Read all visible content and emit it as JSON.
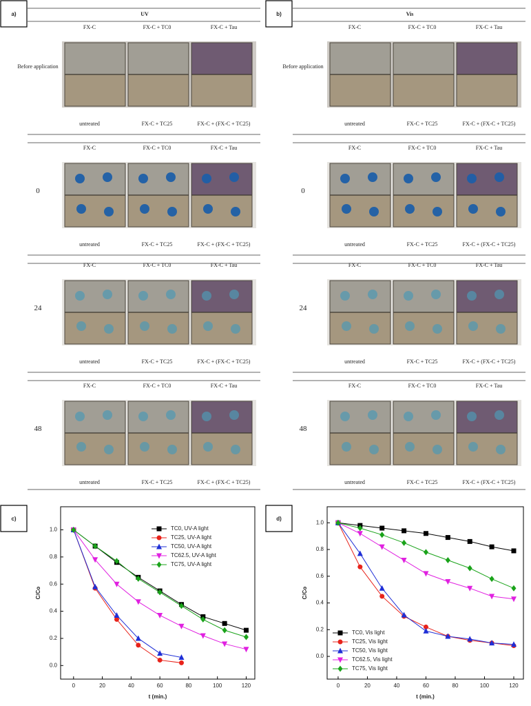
{
  "panels": [
    {
      "label": "a)",
      "light": "UV",
      "top_labels": [
        "FX-C",
        "FX-C + TC0",
        "FX-C + Tau"
      ],
      "bottom_labels": [
        "untreated",
        "FX-C + TC25",
        "FX-C + (FX-C + TC25)"
      ],
      "rows": [
        "Before application",
        "0",
        "24",
        "48"
      ]
    },
    {
      "label": "b)",
      "light": "Vis",
      "top_labels": [
        "FX-C",
        "FX-C + TC0",
        "FX-C + Tau"
      ],
      "bottom_labels": [
        "untreated",
        "FX-C + TC25",
        "FX-C + (FX-C + TC25)"
      ],
      "rows": [
        "Before application",
        "0",
        "24",
        "48"
      ]
    }
  ],
  "chart_data": [
    {
      "type": "line",
      "panel_label": "c)",
      "xlabel": "t (min.)",
      "ylabel": "C/Co",
      "x": [
        0,
        15,
        30,
        45,
        60,
        75,
        90,
        105,
        120
      ],
      "xlim": [
        -9,
        126
      ],
      "ylim": [
        -0.1,
        1.17
      ],
      "xticks": [
        0,
        20,
        40,
        60,
        80,
        100,
        120
      ],
      "yticks": [
        {
          "value": 0,
          "label": "0.0"
        },
        0.2,
        0.4,
        0.6,
        0.8,
        {
          "value": 1,
          "label": "1.0"
        }
      ],
      "legend": "upper right",
      "series": [
        {
          "name": "TC0, UV-A light",
          "color": "#000000",
          "marker": "square",
          "values": [
            1.0,
            0.88,
            0.76,
            0.65,
            0.55,
            0.45,
            0.36,
            0.31,
            0.26
          ]
        },
        {
          "name": "TC25, UV-A light",
          "color": "#e8231b",
          "marker": "circle",
          "values": [
            1.0,
            0.57,
            0.34,
            0.15,
            0.04,
            0.02,
            null,
            null,
            null
          ]
        },
        {
          "name": "TC50, UV-A light",
          "color": "#1f2fd6",
          "marker": "triangle-up",
          "values": [
            1.0,
            0.58,
            0.37,
            0.2,
            0.09,
            0.06,
            null,
            null,
            null
          ]
        },
        {
          "name": "TC62.5, UV-A light",
          "color": "#e020e0",
          "marker": "triangle-down",
          "values": [
            1.0,
            0.78,
            0.6,
            0.47,
            0.37,
            0.29,
            0.22,
            0.16,
            0.12
          ]
        },
        {
          "name": "TC75, UV-A light",
          "color": "#1aa31a",
          "marker": "diamond",
          "values": [
            1.0,
            0.88,
            0.77,
            0.64,
            0.54,
            0.44,
            0.34,
            0.26,
            0.21
          ]
        }
      ]
    },
    {
      "type": "line",
      "panel_label": "d)",
      "xlabel": "t (min.)",
      "ylabel": "C/Co",
      "x": [
        0,
        15,
        30,
        45,
        60,
        75,
        90,
        105,
        120
      ],
      "xlim": [
        -7.5,
        126.6
      ],
      "ylim": [
        -0.17,
        1.12
      ],
      "xticks": [
        0,
        20,
        40,
        60,
        80,
        100,
        120
      ],
      "yticks": [
        {
          "value": 0,
          "label": "0.0"
        },
        0.2,
        0.4,
        0.6,
        0.8,
        {
          "value": 1,
          "label": "1.0"
        }
      ],
      "legend": "lower left",
      "series": [
        {
          "name": "TC0, Vis light",
          "color": "#000000",
          "marker": "square",
          "values": [
            1.0,
            0.98,
            0.96,
            0.94,
            0.92,
            0.89,
            0.86,
            0.82,
            0.79
          ]
        },
        {
          "name": "TC25, Vis light",
          "color": "#e8231b",
          "marker": "circle",
          "values": [
            1.0,
            0.67,
            0.45,
            0.3,
            0.22,
            0.15,
            0.12,
            0.1,
            0.08
          ]
        },
        {
          "name": "TC50, Vis light",
          "color": "#1f2fd6",
          "marker": "triangle-up",
          "values": [
            1.0,
            0.77,
            0.51,
            0.31,
            0.19,
            0.15,
            0.13,
            0.1,
            0.09
          ]
        },
        {
          "name": "TC62.5, Vis light",
          "color": "#e020e0",
          "marker": "triangle-down",
          "values": [
            1.0,
            0.92,
            0.82,
            0.72,
            0.62,
            0.56,
            0.51,
            0.45,
            0.43
          ]
        },
        {
          "name": "TC75, Vis light",
          "color": "#1aa31a",
          "marker": "diamond",
          "values": [
            1.0,
            0.96,
            0.91,
            0.85,
            0.78,
            0.72,
            0.66,
            0.58,
            0.51
          ]
        }
      ]
    }
  ]
}
